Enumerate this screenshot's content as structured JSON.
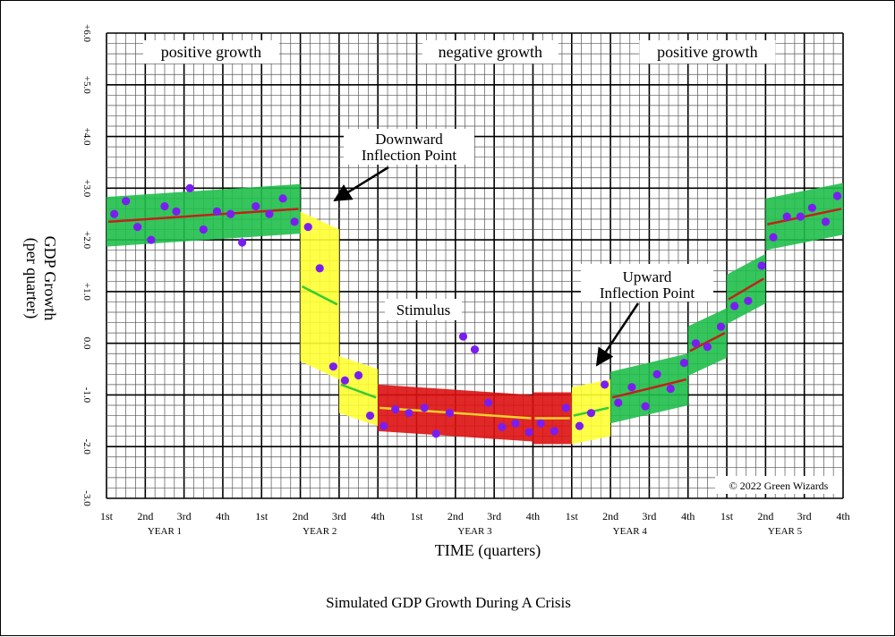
{
  "caption": "Simulated GDP Growth During A Crisis",
  "chart_data": {
    "type": "scatter",
    "title": "",
    "xlabel": "TIME (quarters)",
    "ylabel": "GDP Growth",
    "ylabel_sub": "(per quarter)",
    "ylim": [
      -3.0,
      6.0
    ],
    "xlim": [
      0,
      19
    ],
    "grid": true,
    "y_ticks": [
      "-3.0",
      "-2.0",
      "-1.0",
      "0.0",
      "+1.0",
      "+2.0",
      "+3.0",
      "+4.0",
      "+5.0",
      "+6.0"
    ],
    "quarter_ticks": [
      "1st",
      "2nd",
      "3rd",
      "4th",
      "1st",
      "2nd",
      "3rd",
      "4th",
      "1st",
      "2nd",
      "3rd",
      "4th",
      "1st",
      "2nd",
      "3rd",
      "4th",
      "1st",
      "2nd",
      "3rd",
      "4th"
    ],
    "year_labels": [
      {
        "label": "YEAR 1",
        "at": 1.5
      },
      {
        "label": "YEAR 2",
        "at": 5.5
      },
      {
        "label": "YEAR 3",
        "at": 9.5
      },
      {
        "label": "YEAR 4",
        "at": 13.5
      },
      {
        "label": "YEAR 5",
        "at": 17.5
      }
    ],
    "regions": [
      {
        "label": "positive growth",
        "at": 2.7
      },
      {
        "label": "negative growth",
        "at": 9.9
      },
      {
        "label": "positive growth",
        "at": 15.5
      }
    ],
    "bands": [
      {
        "color": "#1fbf4a",
        "x": [
          0,
          5
        ],
        "center": [
          2.35,
          2.6
        ],
        "halfwidth": 0.48,
        "trend": "#c0221a"
      },
      {
        "color": "#ffff33",
        "x": [
          5,
          6
        ],
        "center": [
          1.1,
          0.75
        ],
        "halfwidth": 1.45,
        "trend": "#33cc33"
      },
      {
        "color": "#ffff33",
        "x": [
          6,
          7
        ],
        "center": [
          -0.8,
          -1.05
        ],
        "halfwidth": 0.55,
        "trend": "#33cc33"
      },
      {
        "color": "#dd1111",
        "x": [
          7,
          11
        ],
        "center": [
          -1.25,
          -1.45
        ],
        "halfwidth": 0.45,
        "trend": "#f2d12a"
      },
      {
        "color": "#dd1111",
        "x": [
          11,
          12
        ],
        "center": [
          -1.45,
          -1.45
        ],
        "halfwidth": 0.5,
        "trend": "#f2d12a"
      },
      {
        "color": "#ffff33",
        "x": [
          12,
          13
        ],
        "center": [
          -1.4,
          -1.25
        ],
        "halfwidth": 0.55,
        "trend": "#33cc33"
      },
      {
        "color": "#1fbf4a",
        "x": [
          13,
          15
        ],
        "center": [
          -1.05,
          -0.7
        ],
        "halfwidth": 0.5,
        "trend": "#c0221a"
      },
      {
        "color": "#1fbf4a",
        "x": [
          15,
          16
        ],
        "center": [
          -0.15,
          0.2
        ],
        "halfwidth": 0.48,
        "trend": "#c0221a"
      },
      {
        "color": "#1fbf4a",
        "x": [
          16,
          17
        ],
        "center": [
          0.85,
          1.25
        ],
        "halfwidth": 0.48,
        "trend": "#c0221a"
      },
      {
        "color": "#1fbf4a",
        "x": [
          17,
          19
        ],
        "center": [
          2.3,
          2.6
        ],
        "halfwidth": 0.5,
        "trend": "#c0221a"
      }
    ],
    "points": [
      [
        0.2,
        2.5
      ],
      [
        0.5,
        2.75
      ],
      [
        0.8,
        2.25
      ],
      [
        1.15,
        2.0
      ],
      [
        1.5,
        2.65
      ],
      [
        1.8,
        2.55
      ],
      [
        2.15,
        3.0
      ],
      [
        2.5,
        2.2
      ],
      [
        2.85,
        2.55
      ],
      [
        3.2,
        2.5
      ],
      [
        3.5,
        1.95
      ],
      [
        3.85,
        2.65
      ],
      [
        4.2,
        2.5
      ],
      [
        4.55,
        2.8
      ],
      [
        4.85,
        2.35
      ],
      [
        5.2,
        2.25
      ],
      [
        5.5,
        1.45
      ],
      [
        5.85,
        -0.45
      ],
      [
        6.15,
        -0.72
      ],
      [
        6.5,
        -0.62
      ],
      [
        6.8,
        -1.4
      ],
      [
        7.15,
        -1.6
      ],
      [
        7.45,
        -1.28
      ],
      [
        7.8,
        -1.35
      ],
      [
        8.2,
        -1.25
      ],
      [
        8.5,
        -1.75
      ],
      [
        8.85,
        -1.35
      ],
      [
        9.2,
        0.13
      ],
      [
        9.5,
        -0.12
      ],
      [
        9.85,
        -1.15
      ],
      [
        10.2,
        -1.62
      ],
      [
        10.55,
        -1.55
      ],
      [
        10.9,
        -1.72
      ],
      [
        11.2,
        -1.55
      ],
      [
        11.55,
        -1.7
      ],
      [
        11.85,
        -1.25
      ],
      [
        12.2,
        -1.6
      ],
      [
        12.5,
        -1.35
      ],
      [
        12.85,
        -0.8
      ],
      [
        13.2,
        -1.15
      ],
      [
        13.55,
        -0.85
      ],
      [
        13.9,
        -1.22
      ],
      [
        14.2,
        -0.6
      ],
      [
        14.55,
        -0.88
      ],
      [
        14.9,
        -0.38
      ],
      [
        15.2,
        0.0
      ],
      [
        15.5,
        -0.07
      ],
      [
        15.85,
        0.32
      ],
      [
        16.2,
        0.72
      ],
      [
        16.55,
        0.82
      ],
      [
        16.9,
        1.5
      ],
      [
        17.2,
        2.05
      ],
      [
        17.55,
        2.45
      ],
      [
        17.9,
        2.45
      ],
      [
        18.2,
        2.62
      ],
      [
        18.55,
        2.35
      ],
      [
        18.85,
        2.85
      ]
    ],
    "annotations": [
      {
        "lines": [
          "Downward",
          "Inflection Point"
        ]
      },
      {
        "lines": [
          "Upward",
          "Inflection Point"
        ]
      },
      {
        "lines": [
          "Stimulus"
        ]
      }
    ],
    "copyright": "© 2022 Green Wizards",
    "colors": {
      "point": "#7a1ef0",
      "grid_major": "#000000",
      "grid_minor": "#555555"
    }
  }
}
